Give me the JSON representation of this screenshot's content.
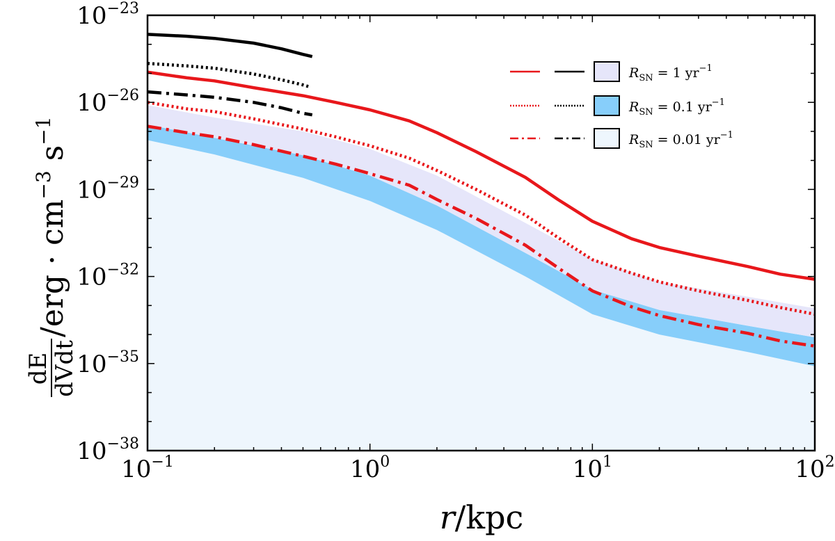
{
  "chart_data": {
    "type": "line",
    "title": "",
    "xscale": "log",
    "yscale": "log",
    "xlim": [
      0.1,
      100
    ],
    "ylim": [
      1e-38,
      1e-23
    ],
    "xlabel": {
      "var": "r",
      "sep": "/",
      "unit": "kpc"
    },
    "ylabel": {
      "num": "dE",
      "den": "dVdt",
      "rest": "/erg · cm",
      "exp1": "−3",
      "mid": " s",
      "exp2": "−1"
    },
    "x_ticks": [
      {
        "value": 0.1,
        "base": "10",
        "exp": "−1"
      },
      {
        "value": 1,
        "base": "10",
        "exp": "0"
      },
      {
        "value": 10,
        "base": "10",
        "exp": "1"
      },
      {
        "value": 100,
        "base": "10",
        "exp": "2"
      }
    ],
    "y_ticks": [
      {
        "value": 1e-23,
        "base": "10",
        "exp": "−23"
      },
      {
        "value": 1e-26,
        "base": "10",
        "exp": "−26"
      },
      {
        "value": 1e-29,
        "base": "10",
        "exp": "−29"
      },
      {
        "value": 1e-32,
        "base": "10",
        "exp": "−32"
      },
      {
        "value": 1e-35,
        "base": "10",
        "exp": "−35"
      },
      {
        "value": 1e-38,
        "base": "10",
        "exp": "−38"
      }
    ],
    "bands": [
      {
        "name": "R_SN = 0.01 yr^-1 band",
        "color": "#eef6fd",
        "x": [
          0.1,
          0.2,
          0.5,
          1,
          2,
          5,
          10,
          20,
          50,
          100
        ],
        "upper": [
          6e-28,
          1.6e-28,
          2.5e-29,
          4e-30,
          4e-31,
          1e-32,
          5e-34,
          1e-34,
          2.5e-35,
          8e-36
        ],
        "lower": [
          1e-38,
          1e-38,
          1e-38,
          1e-38,
          1e-38,
          1e-38,
          1e-38,
          1e-38,
          1e-38,
          1e-38
        ]
      },
      {
        "name": "R_SN = 0.1 yr^-1 band",
        "color": "#87cefa",
        "x": [
          0.1,
          0.2,
          0.5,
          1,
          2,
          5,
          10,
          20,
          50,
          100
        ],
        "upper": [
          1.7e-27,
          6e-28,
          1.5e-28,
          3e-29,
          2.8e-30,
          6.5e-32,
          3.5e-33,
          7e-34,
          2e-34,
          8e-35
        ],
        "lower": [
          5e-28,
          1.6e-28,
          2.5e-29,
          4e-30,
          4e-31,
          1e-32,
          5e-34,
          1e-34,
          2.5e-35,
          8e-36
        ]
      },
      {
        "name": "R_SN = 1 yr^-1 band",
        "color": "#e6e6fa",
        "x": [
          0.1,
          0.2,
          0.5,
          1,
          2,
          5,
          10,
          20,
          50,
          100
        ],
        "upper": [
          8e-27,
          3e-27,
          1e-27,
          2.5e-28,
          3e-29,
          7e-31,
          4e-32,
          6.5e-33,
          2e-33,
          8e-34
        ],
        "lower": [
          1.7e-27,
          6e-28,
          1.5e-28,
          3e-29,
          2.8e-30,
          6.5e-32,
          3.5e-33,
          7e-34,
          2e-34,
          8e-35
        ]
      }
    ],
    "series": [
      {
        "name": "red solid (R_SN = 1 yr^-1)",
        "color": "#e8171b",
        "dash": "solid",
        "x": [
          0.1,
          0.15,
          0.2,
          0.3,
          0.5,
          0.7,
          1,
          1.5,
          2,
          3,
          5,
          7,
          10,
          15,
          20,
          30,
          50,
          70,
          100
        ],
        "y": [
          1.1e-25,
          7e-26,
          5.5e-26,
          3.2e-26,
          1.7e-26,
          1e-26,
          5.5e-27,
          2.3e-27,
          9e-28,
          2e-28,
          2.6e-29,
          4.5e-30,
          8e-31,
          2e-31,
          1e-31,
          5e-32,
          2.2e-32,
          1.2e-32,
          8e-33
        ]
      },
      {
        "name": "red dotted (R_SN = 0.1 yr^-1)",
        "color": "#e8171b",
        "dash": "dot",
        "x": [
          0.1,
          0.15,
          0.2,
          0.3,
          0.5,
          0.7,
          1,
          1.5,
          2,
          3,
          5,
          7,
          10,
          15,
          20,
          30,
          50,
          70,
          100
        ],
        "y": [
          1e-26,
          6e-27,
          4.8e-27,
          2.7e-27,
          1.2e-27,
          6.5e-28,
          3.2e-28,
          1.2e-28,
          4.5e-29,
          1e-29,
          1.3e-30,
          2.2e-31,
          3.8e-32,
          1.3e-32,
          6.5e-33,
          3.2e-33,
          1.5e-33,
          8.5e-34,
          5e-34
        ]
      },
      {
        "name": "red dash-dot (R_SN = 0.01 yr^-1)",
        "color": "#e8171b",
        "dash": "dashdot",
        "x": [
          0.1,
          0.15,
          0.2,
          0.3,
          0.5,
          0.7,
          1,
          1.5,
          2,
          3,
          5,
          7,
          10,
          15,
          20,
          30,
          50,
          70,
          100
        ],
        "y": [
          1.5e-27,
          9e-28,
          6.5e-28,
          3.5e-28,
          1.4e-28,
          7.5e-29,
          3.5e-29,
          1.4e-29,
          4.5e-30,
          1e-30,
          1.2e-31,
          2e-32,
          3.2e-33,
          9e-34,
          4.5e-34,
          2.2e-34,
          1.1e-34,
          6e-35,
          4e-35
        ]
      },
      {
        "name": "black solid (R_SN = 1 yr^-1)",
        "color": "#000000",
        "dash": "solid",
        "x": [
          0.1,
          0.15,
          0.2,
          0.3,
          0.4,
          0.5,
          0.55
        ],
        "y": [
          2.2e-24,
          1.9e-24,
          1.6e-24,
          1.1e-24,
          7e-25,
          4.5e-25,
          3.8e-25
        ]
      },
      {
        "name": "black dotted (R_SN = 0.1 yr^-1)",
        "color": "#000000",
        "dash": "dot",
        "x": [
          0.1,
          0.15,
          0.2,
          0.3,
          0.4,
          0.5,
          0.53
        ],
        "y": [
          2.2e-25,
          1.8e-25,
          1.5e-25,
          9.5e-26,
          6e-26,
          4e-26,
          3.5e-26
        ]
      },
      {
        "name": "black dash-dot (R_SN = 0.01 yr^-1)",
        "color": "#000000",
        "dash": "dashdot",
        "x": [
          0.1,
          0.15,
          0.2,
          0.3,
          0.4,
          0.5,
          0.55
        ],
        "y": [
          2.3e-26,
          1.8e-26,
          1.5e-26,
          1e-26,
          6.5e-27,
          4.2e-27,
          3.7e-27
        ]
      }
    ],
    "legend": {
      "position": "top-right",
      "entries": [
        {
          "label_prefix": "R",
          "label_sub": "SN",
          "label_value": " = 1 yr",
          "label_exp": "−1",
          "dash": "solid",
          "swatch": "#e6e6fa"
        },
        {
          "label_prefix": "R",
          "label_sub": "SN",
          "label_value": " = 0.1 yr",
          "label_exp": "−1",
          "dash": "dot",
          "swatch": "#87cefa"
        },
        {
          "label_prefix": "R",
          "label_sub": "SN",
          "label_value": " = 0.01 yr",
          "label_exp": "−1",
          "dash": "dashdot",
          "swatch": "#eef6fd"
        }
      ]
    }
  }
}
